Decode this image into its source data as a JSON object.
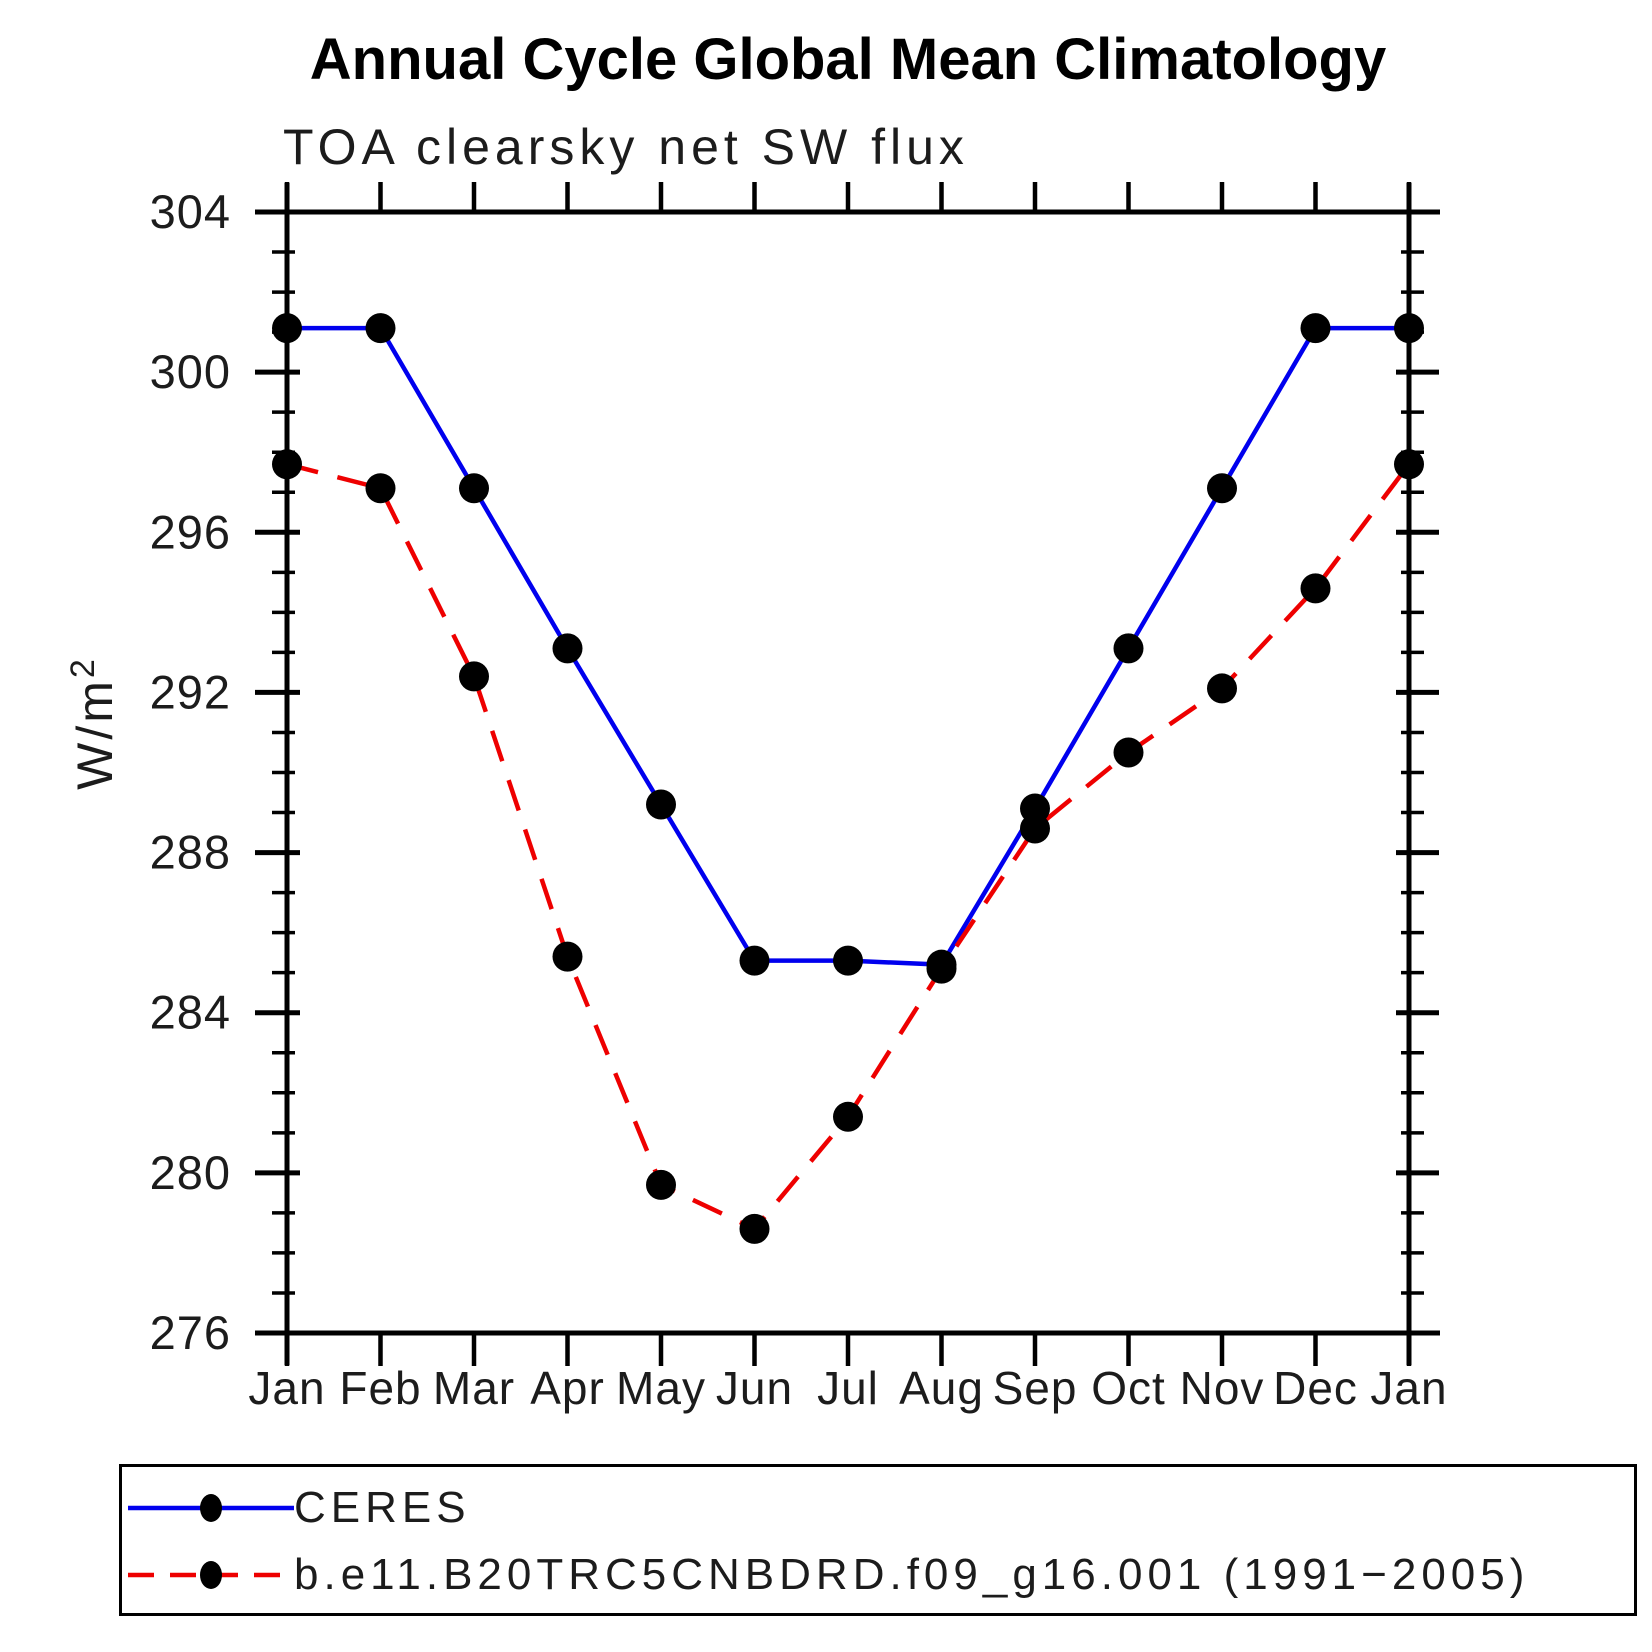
{
  "page": {
    "title": "Annual Cycle Global Mean Climatology",
    "subtitle": "TOA clearsky net SW flux",
    "ylabel_base": "W/m",
    "ylabel_exponent": "2"
  },
  "chart_data": {
    "type": "line",
    "title": "Annual Cycle Global Mean Climatology",
    "subtitle": "TOA clearsky net SW flux",
    "xlabel": "",
    "ylabel": "W/m²",
    "categories": [
      "Jan",
      "Feb",
      "Mar",
      "Apr",
      "May",
      "Jun",
      "Jul",
      "Aug",
      "Sep",
      "Oct",
      "Nov",
      "Dec",
      "Jan"
    ],
    "series": [
      {
        "name": "CERES",
        "line_style": "solid",
        "color": "#0000ee",
        "marker": "filled-circle",
        "marker_color": "#000000",
        "values": [
          301.1,
          301.1,
          297.1,
          293.1,
          289.2,
          285.3,
          285.3,
          285.2,
          289.1,
          293.1,
          297.1,
          301.1,
          301.1
        ]
      },
      {
        "name": "b.e11.B20TRC5CNBDRD.f09_g16.001 (1991−2005)",
        "line_style": "dashed",
        "color": "#ee0000",
        "marker": "filled-circle",
        "marker_color": "#000000",
        "values": [
          297.7,
          297.1,
          292.4,
          285.4,
          279.7,
          278.6,
          281.4,
          285.1,
          288.6,
          290.5,
          292.1,
          294.6,
          297.7
        ]
      }
    ],
    "ylim": [
      276,
      304
    ],
    "ytick_step": 4,
    "yminor_step": 1,
    "grid": "off",
    "legend_position": "bottom-left-box",
    "axis_color": "#000000",
    "tick_label_color": "#1c1c1c"
  }
}
